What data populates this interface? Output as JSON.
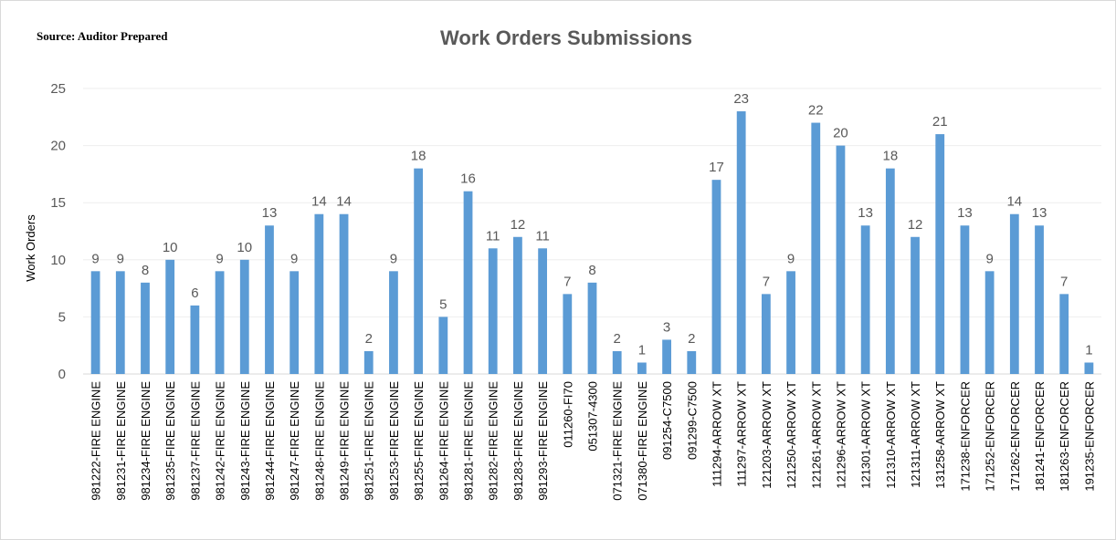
{
  "chart_data": {
    "type": "bar",
    "title": "Work Orders  Submissions",
    "source": "Source: Auditor Prepared",
    "y_label": "Work Orders",
    "categories": [
      "981222-FIRE ENGINE",
      "981231-FIRE ENGINE",
      "981234-FIRE ENGINE",
      "981235-FIRE ENGINE",
      "981237-FIRE ENGINE",
      "981242-FIRE ENGINE",
      "981243-FIRE ENGINE",
      "981244-FIRE ENGINE",
      "981247-FIRE ENGINE",
      "981248-FIRE ENGINE",
      "981249-FIRE ENGINE",
      "981251-FIRE ENGINE",
      "981253-FIRE ENGINE",
      "981255-FIRE ENGINE",
      "981264-FIRE ENGINE",
      "981281-FIRE ENGINE",
      "981282-FIRE ENGINE",
      "981283-FIRE ENGINE",
      "981293-FIRE ENGINE",
      "011260-FI70",
      "051307-4300",
      "071321-FIRE ENGINE",
      "071380-FIRE ENGINE",
      "091254-C7500",
      "091299-C7500",
      "111294-ARROW XT",
      "111297-ARROW XT",
      "121203-ARROW XT",
      "121250-ARROW XT",
      "121261-ARROW XT",
      "121296-ARROW XT",
      "121301-ARROW XT",
      "121310-ARROW XT",
      "121311-ARROW XT",
      "131258-ARROW XT",
      "171238-ENFORCER",
      "171252-ENFORCER",
      "171262-ENFORCER",
      "181241-ENFORCER",
      "181263-ENFORCER",
      "191235-ENFORCER"
    ],
    "values": [
      9,
      9,
      8,
      10,
      6,
      9,
      10,
      13,
      9,
      14,
      14,
      2,
      9,
      18,
      5,
      16,
      11,
      12,
      11,
      7,
      8,
      2,
      1,
      3,
      2,
      17,
      23,
      7,
      9,
      22,
      20,
      13,
      18,
      12,
      21,
      13,
      9,
      14,
      13,
      7,
      1
    ],
    "color": "#5b9bd5",
    "ylim": [
      0,
      25
    ],
    "yticks": [
      0,
      5,
      10,
      15,
      20,
      25
    ],
    "grid": true
  }
}
